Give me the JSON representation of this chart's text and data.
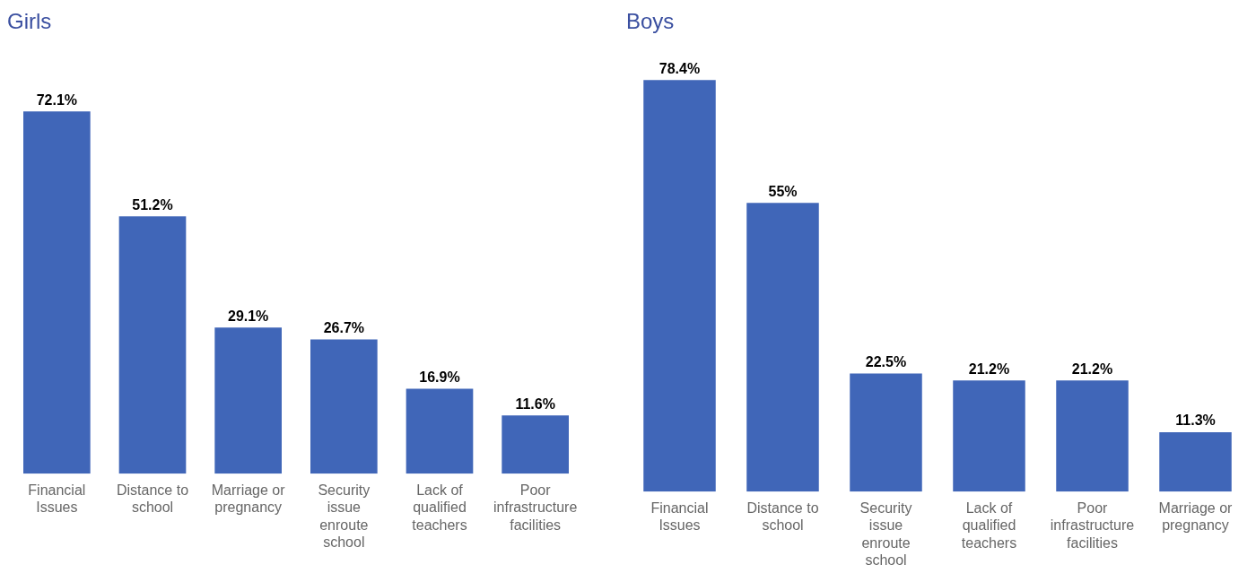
{
  "chart_data": [
    {
      "type": "bar",
      "title": "Girls",
      "categories": [
        "Financial Issues",
        "Distance to school",
        "Marriage or pregnancy",
        "Security issue enroute school",
        "Lack of qualified teachers",
        "Poor infrastructure facilities"
      ],
      "values": [
        72.1,
        51.2,
        29.1,
        26.7,
        16.9,
        11.6
      ],
      "value_labels": [
        "72.1%",
        "51.2%",
        "29.1%",
        "26.7%",
        "16.9%",
        "11.6%"
      ],
      "color": "#4066b8",
      "tick_labels": "x",
      "grid": false,
      "legend": false
    },
    {
      "type": "bar",
      "title": "Boys",
      "categories": [
        "Financial Issues",
        "Distance to school",
        "Security issue enroute school",
        "Lack of qualified teachers",
        "Poor infrastructure facilities",
        "Marriage or pregnancy"
      ],
      "values": [
        78.4,
        55,
        22.5,
        21.2,
        21.2,
        11.3
      ],
      "value_labels": [
        "78.4%",
        "55%",
        "22.5%",
        "21.2%",
        "21.2%",
        "11.3%"
      ],
      "color": "#4066b8",
      "tick_labels": "x",
      "grid": false,
      "legend": false
    }
  ]
}
